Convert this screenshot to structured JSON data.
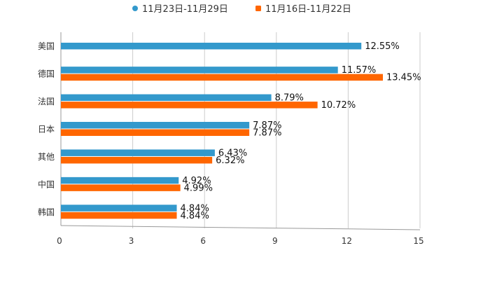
{
  "chart_data": {
    "type": "bar",
    "orientation": "horizontal",
    "categories": [
      "美国",
      "德国",
      "法国",
      "日本",
      "其他",
      "中国",
      "韩国"
    ],
    "series": [
      {
        "name": "11月23日-11月29日",
        "color": "#3399cc",
        "values": [
          12.55,
          11.57,
          8.79,
          7.87,
          6.43,
          4.92,
          4.84
        ],
        "labels": [
          "12.55%",
          "11.57%",
          "8.79%",
          "7.87%",
          "6.43%",
          "4.92%",
          "4.84%"
        ]
      },
      {
        "name": "11月16日-11月22日",
        "color": "#ff6600",
        "values": [
          null,
          13.45,
          10.72,
          7.87,
          6.32,
          4.99,
          4.84
        ],
        "labels": [
          "",
          "13.45%",
          "10.72%",
          "7.87%",
          "6.32%",
          "4.99%",
          "4.84%"
        ]
      }
    ],
    "xlim": [
      0,
      15
    ],
    "xticks": [
      "0",
      "3",
      "6",
      "9",
      "12",
      "15"
    ],
    "grid": true,
    "legend": "top-center",
    "title": "",
    "xlabel": "",
    "ylabel": ""
  }
}
